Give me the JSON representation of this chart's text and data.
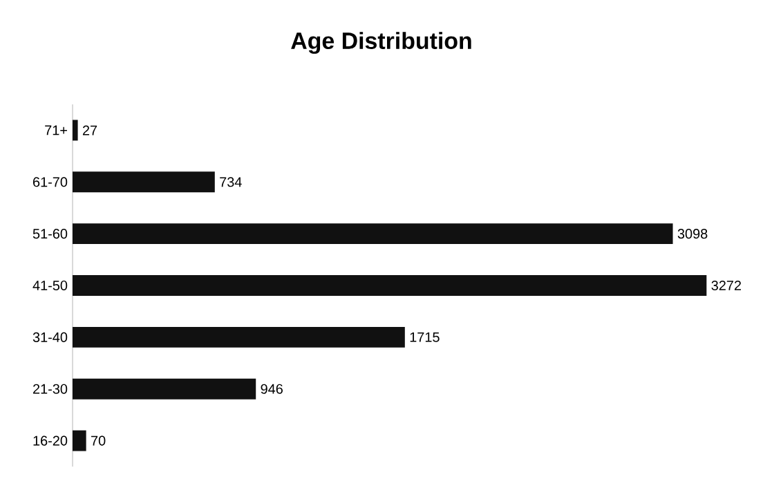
{
  "chart_data": {
    "type": "bar",
    "title": "Age Distribution",
    "orientation": "horizontal",
    "categories": [
      "71+",
      "61-70",
      "51-60",
      "41-50",
      "31-40",
      "21-30",
      "16-20"
    ],
    "values": [
      27,
      734,
      3098,
      3272,
      1715,
      946,
      70
    ],
    "color": "#111111",
    "data_labels": true,
    "grid": false
  }
}
